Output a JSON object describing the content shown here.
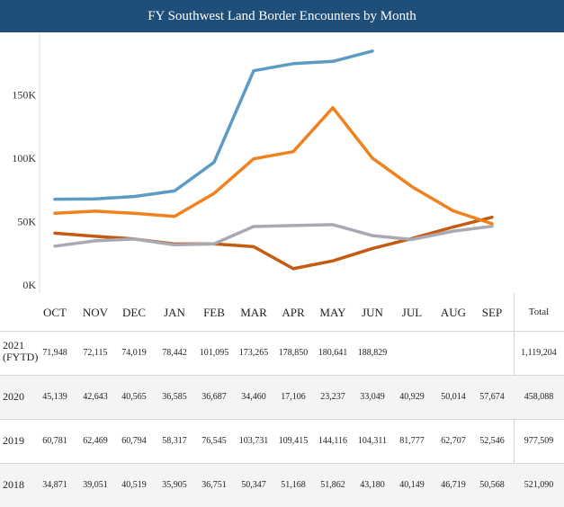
{
  "title": "FY Southwest Land Border Encounters by Month",
  "chart_data": {
    "type": "line",
    "title": "FY Southwest Land Border Encounters by Month",
    "categories": [
      "OCT",
      "NOV",
      "DEC",
      "JAN",
      "FEB",
      "MAR",
      "APR",
      "MAY",
      "JUN",
      "JUL",
      "AUG",
      "SEP"
    ],
    "y_ticks": [
      "0K",
      "50K",
      "100K",
      "150K"
    ],
    "ylim": [
      0,
      195000
    ],
    "grid": false,
    "series": [
      {
        "name": "2021 (FYTD)",
        "color": "#5b9bc4",
        "values": [
          71948,
          72115,
          74019,
          78442,
          101095,
          173265,
          178850,
          180641,
          188829,
          null,
          null,
          null
        ]
      },
      {
        "name": "2020",
        "color": "#c55a11",
        "values": [
          45139,
          42643,
          40565,
          36585,
          36687,
          34460,
          17106,
          23237,
          33049,
          40929,
          50014,
          57674
        ]
      },
      {
        "name": "2019",
        "color": "#f0821e",
        "values": [
          60781,
          62469,
          60794,
          58317,
          76545,
          103731,
          109415,
          144116,
          104311,
          81777,
          62707,
          52546
        ]
      },
      {
        "name": "2018",
        "color": "#a9a9b4",
        "values": [
          34871,
          39051,
          40519,
          35905,
          36751,
          50347,
          51168,
          51862,
          43180,
          40149,
          46719,
          50568
        ]
      }
    ]
  },
  "table": {
    "months": [
      "OCT",
      "NOV",
      "DEC",
      "JAN",
      "FEB",
      "MAR",
      "APR",
      "MAY",
      "JUN",
      "JUL",
      "AUG",
      "SEP"
    ],
    "total_header": "Total",
    "rows": [
      {
        "label_line1": "2021",
        "label_line2": "(FYTD)",
        "cells": [
          "71,948",
          "72,115",
          "74,019",
          "78,442",
          "101,095",
          "173,265",
          "178,850",
          "180,641",
          "188,829",
          "",
          "",
          ""
        ],
        "total": "1,119,204"
      },
      {
        "label_line1": "2020",
        "label_line2": "",
        "cells": [
          "45,139",
          "42,643",
          "40,565",
          "36,585",
          "36,687",
          "34,460",
          "17,106",
          "23,237",
          "33,049",
          "40,929",
          "50,014",
          "57,674"
        ],
        "total": "458,088"
      },
      {
        "label_line1": "2019",
        "label_line2": "",
        "cells": [
          "60,781",
          "62,469",
          "60,794",
          "58,317",
          "76,545",
          "103,731",
          "109,415",
          "144,116",
          "104,311",
          "81,777",
          "62,707",
          "52,546"
        ],
        "total": "977,509"
      },
      {
        "label_line1": "2018",
        "label_line2": "",
        "cells": [
          "34,871",
          "39,051",
          "40,519",
          "35,905",
          "36,751",
          "50,347",
          "51,168",
          "51,862",
          "43,180",
          "40,149",
          "46,719",
          "50,568"
        ],
        "total": "521,090"
      }
    ]
  }
}
